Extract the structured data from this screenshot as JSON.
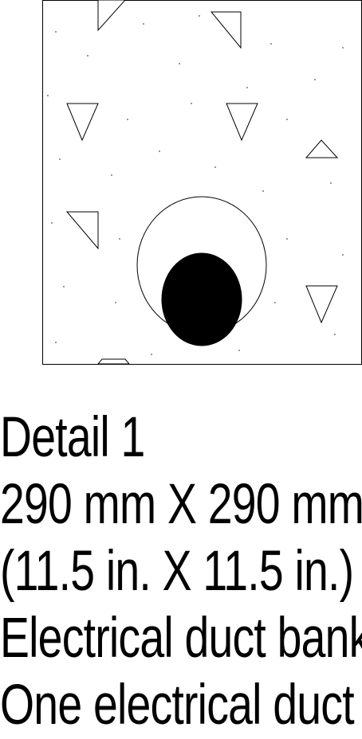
{
  "drawing": {
    "line_color": "#000000",
    "background_color": "#ffffff",
    "duct_fill_color": "#000000",
    "symbol_icon": "aggregate-triangle-icon"
  },
  "caption": {
    "lines": [
      "Detail 1",
      "290 mm X 290 mm",
      "(11.5 in. X 11.5 in.)",
      "Electrical duct bank",
      "One electrical duct"
    ]
  }
}
